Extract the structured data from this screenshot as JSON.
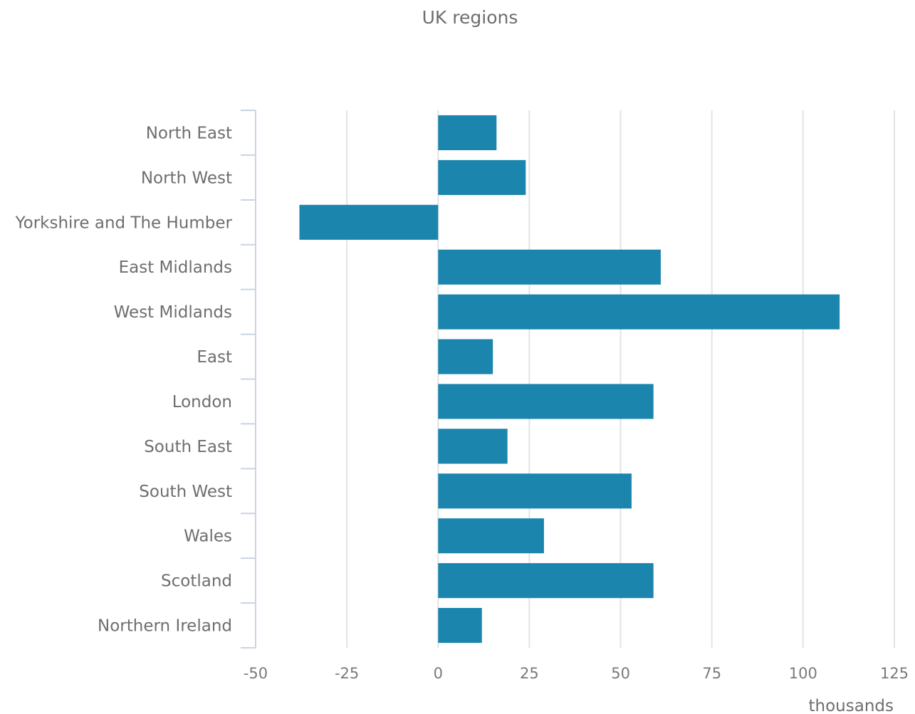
{
  "chart_data": {
    "type": "bar",
    "orientation": "horizontal",
    "title": "UK regions",
    "xlabel": "thousands",
    "ylabel": "",
    "categories": [
      "North East",
      "North West",
      "Yorkshire and The Humber",
      "East Midlands",
      "West Midlands",
      "East",
      "London",
      "South East",
      "South West",
      "Wales",
      "Scotland",
      "Northern Ireland"
    ],
    "values": [
      16,
      24,
      -38,
      61,
      110,
      15,
      59,
      19,
      53,
      29,
      59,
      12
    ],
    "xlim": [
      -50,
      125
    ],
    "xticks": [
      -50,
      -25,
      0,
      25,
      50,
      75,
      100,
      125
    ],
    "xtick_labels": [
      "-50",
      "-25",
      "0",
      "25",
      "50",
      "75",
      "100",
      "125"
    ],
    "grid": true,
    "legend": "none",
    "colors": {
      "bar": "#1b85ad",
      "grid": "#e3e3e3",
      "axis": "#c9d3e3",
      "text": "#6e6e6e"
    }
  }
}
